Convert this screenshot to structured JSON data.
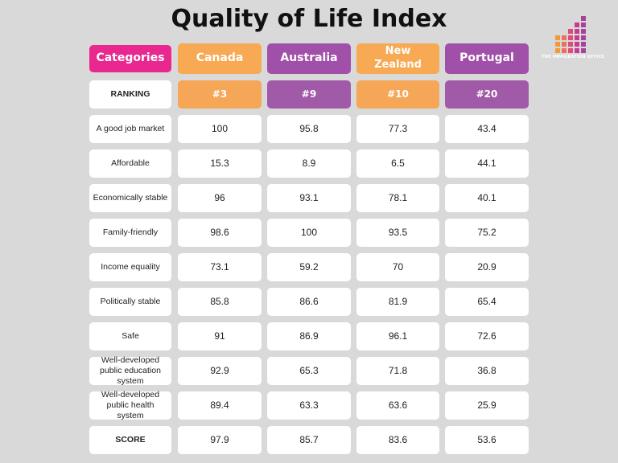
{
  "title": "Quality of Life Index",
  "logo": {
    "text": "THE IMMIGRATION OFFICE"
  },
  "colors": {
    "categories_header": "#e8278f",
    "orange": "#f5a657",
    "orange_header": "#f7a953",
    "purple": "#a05aa7",
    "purple_header": "#a050a8",
    "background": "#d9d9d9"
  },
  "chart_data": {
    "type": "table",
    "header_label": "Categories",
    "countries": [
      "Canada",
      "Australia",
      "New Zealand",
      "Portugal"
    ],
    "ranking": {
      "label": "RANKING",
      "values": [
        "#3",
        "#9",
        "#10",
        "#20"
      ]
    },
    "rows": [
      {
        "label": "A good job market",
        "values": [
          "100",
          "95.8",
          "77.3",
          "43.4"
        ]
      },
      {
        "label": "Affordable",
        "values": [
          "15.3",
          "8.9",
          "6.5",
          "44.1"
        ]
      },
      {
        "label": "Economically stable",
        "values": [
          "96",
          "93.1",
          "78.1",
          "40.1"
        ]
      },
      {
        "label": "Family-friendly",
        "values": [
          "98.6",
          "100",
          "93.5",
          "75.2"
        ]
      },
      {
        "label": "Income equality",
        "values": [
          "73.1",
          "59.2",
          "70",
          "20.9"
        ]
      },
      {
        "label": "Politically stable",
        "values": [
          "85.8",
          "86.6",
          "81.9",
          "65.4"
        ]
      },
      {
        "label": "Safe",
        "values": [
          "91",
          "86.9",
          "96.1",
          "72.6"
        ]
      },
      {
        "label": "Well-developed public education system",
        "values": [
          "92.9",
          "65.3",
          "71.8",
          "36.8"
        ]
      },
      {
        "label": "Well-developed public health system",
        "values": [
          "89.4",
          "63.3",
          "63.6",
          "25.9"
        ]
      }
    ],
    "score": {
      "label": "SCORE",
      "values": [
        "97.9",
        "85.7",
        "83.6",
        "53.6"
      ]
    }
  }
}
